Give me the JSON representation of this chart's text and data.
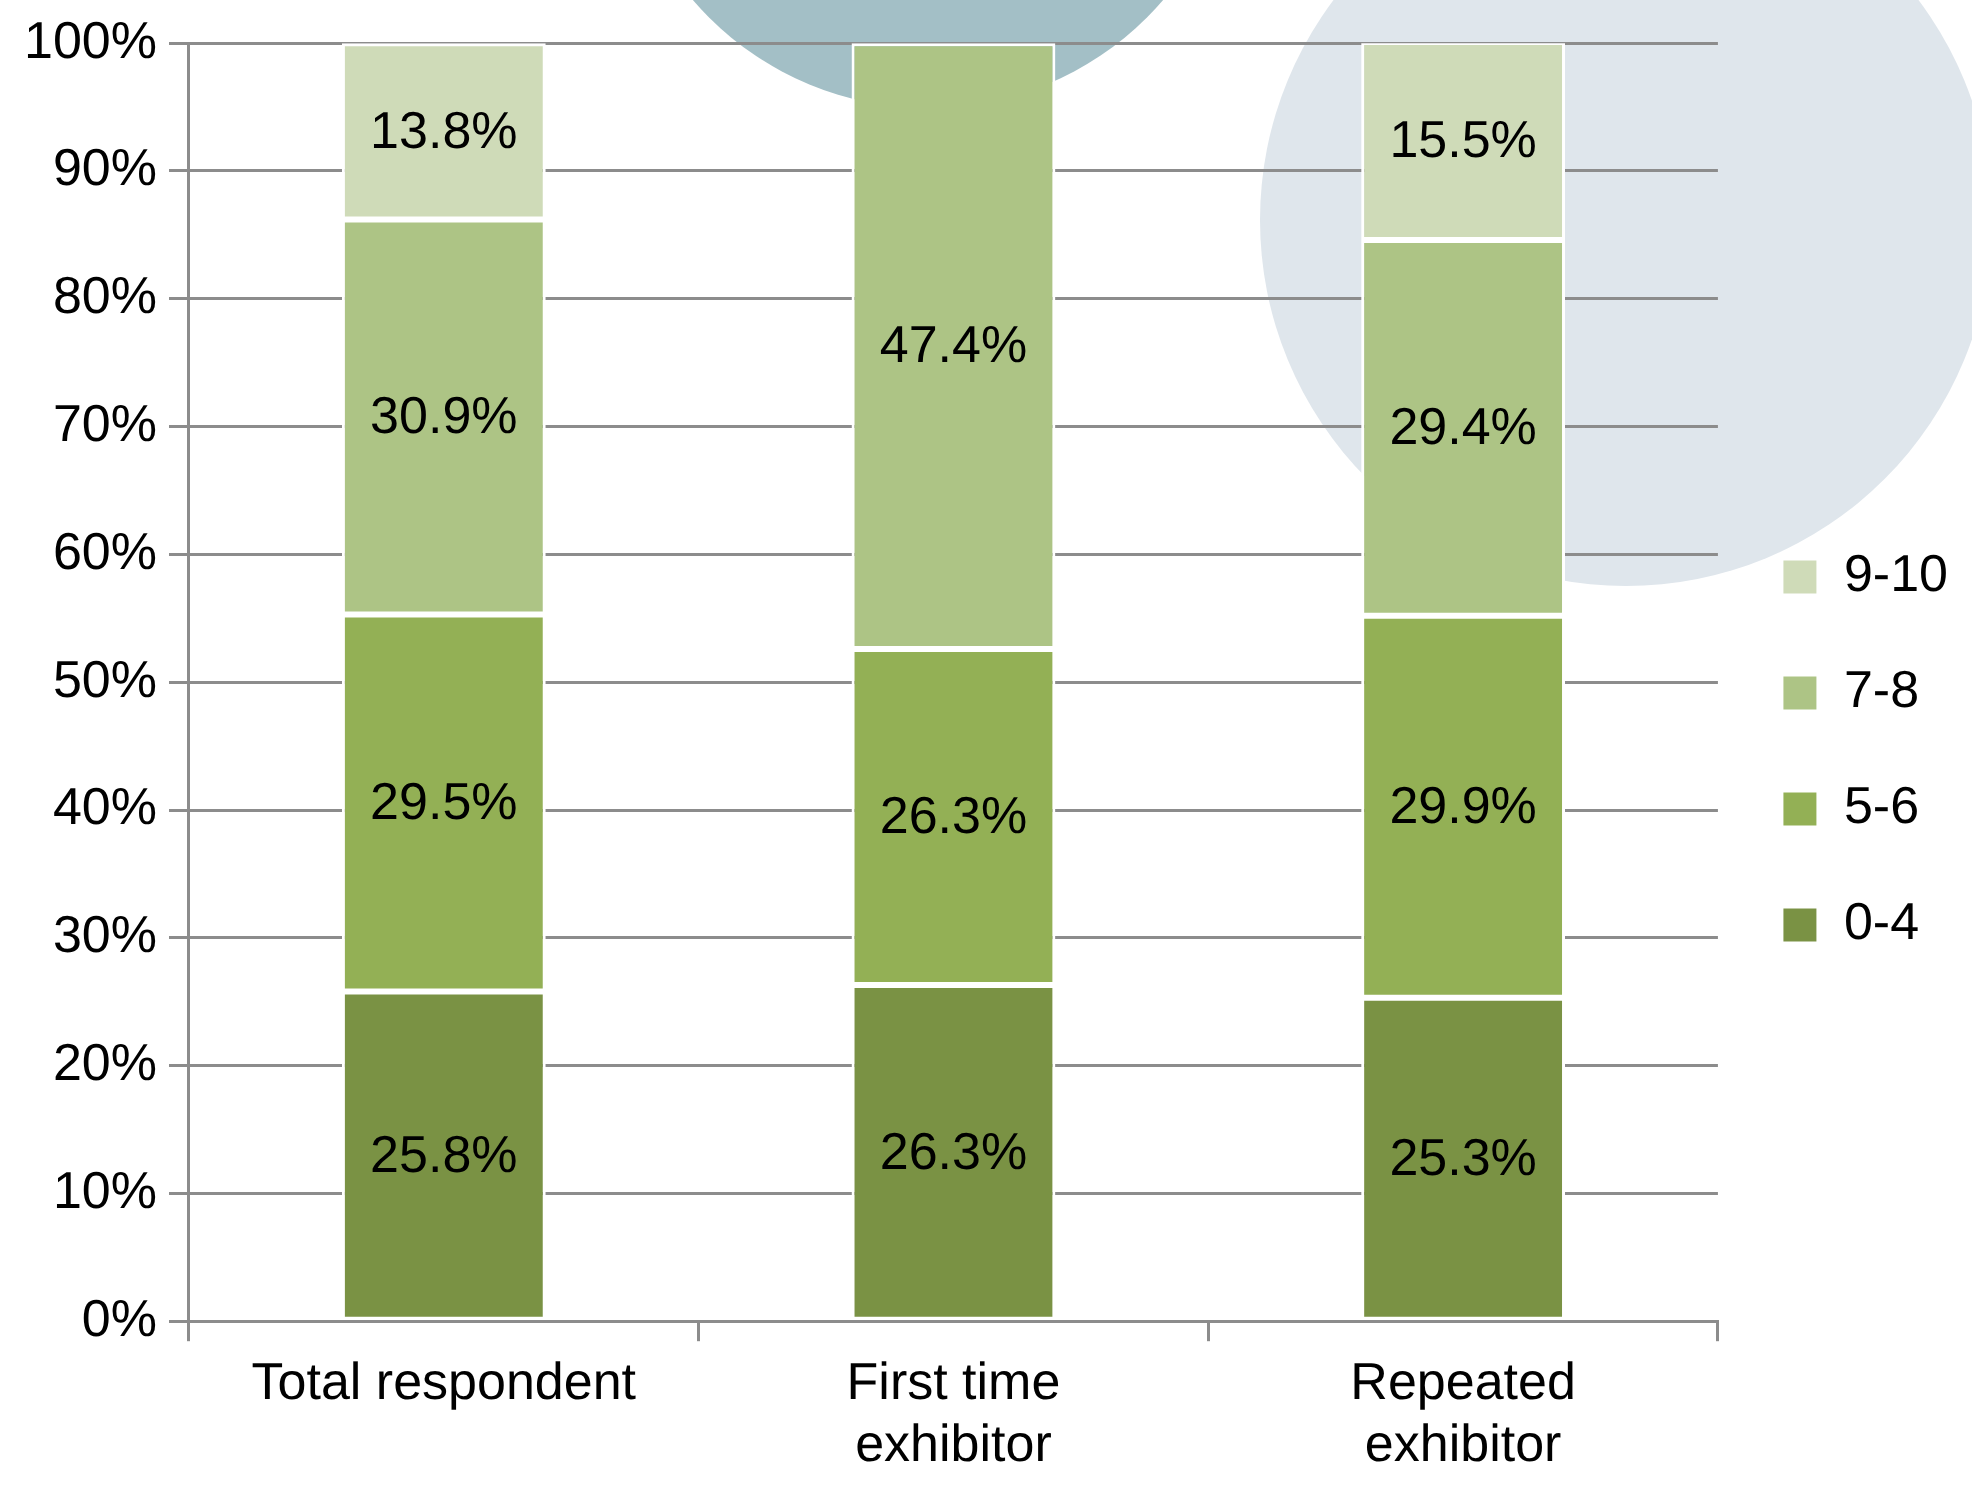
{
  "chart_data": {
    "type": "bar",
    "stacked": true,
    "categories": [
      "Total respondent",
      "First time exhibitor",
      "Repeated exhibitor"
    ],
    "series": [
      {
        "name": "0-4",
        "color": "#7a9244",
        "values": [
          25.8,
          26.3,
          25.3
        ],
        "value_labels": [
          "25.8%",
          "26.3%",
          "25.3%"
        ]
      },
      {
        "name": "5-6",
        "color": "#93b055",
        "values": [
          29.5,
          26.3,
          29.9
        ],
        "value_labels": [
          "29.5%",
          "26.3%",
          "29.9%"
        ]
      },
      {
        "name": "7-8",
        "color": "#adc485",
        "values": [
          30.9,
          47.4,
          29.4
        ],
        "value_labels": [
          "30.9%",
          "47.4%",
          "29.4%"
        ]
      },
      {
        "name": "9-10",
        "color": "#cfdbb8",
        "values": [
          13.8,
          null,
          15.5
        ],
        "value_labels": [
          "13.8%",
          null,
          "15.5%"
        ]
      }
    ],
    "ylim": [
      0,
      100
    ],
    "yticks": [
      {
        "value": 0,
        "label": "0%"
      },
      {
        "value": 10,
        "label": "10%"
      },
      {
        "value": 20,
        "label": "20%"
      },
      {
        "value": 30,
        "label": "30%"
      },
      {
        "value": 40,
        "label": "40%"
      },
      {
        "value": 50,
        "label": "50%"
      },
      {
        "value": 60,
        "label": "60%"
      },
      {
        "value": 70,
        "label": "70%"
      },
      {
        "value": 80,
        "label": "80%"
      },
      {
        "value": 90,
        "label": "90%"
      },
      {
        "value": 100,
        "label": "100%"
      }
    ],
    "grid": "y",
    "legend": "right"
  }
}
